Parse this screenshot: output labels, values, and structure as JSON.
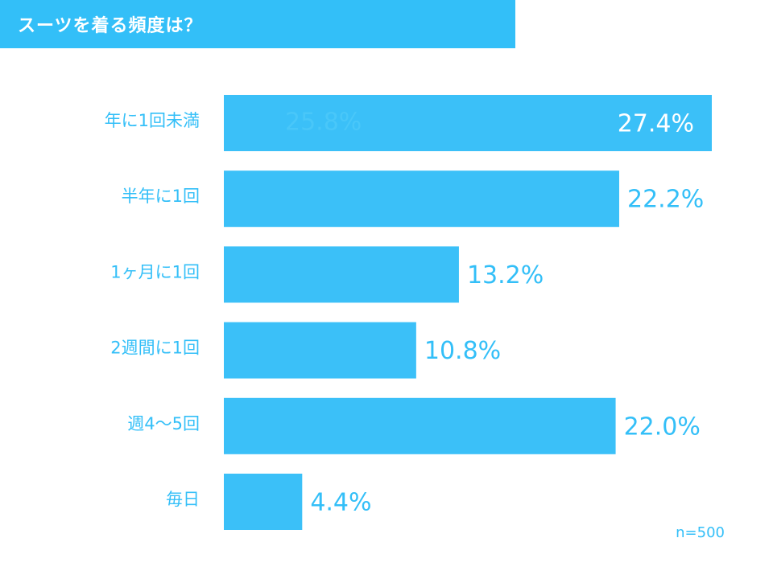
{
  "header": {
    "title": "スーツを着る頻度は？"
  },
  "note": "n=500",
  "colors": {
    "accent": "#33bff8",
    "bar": "#3bc0f8"
  },
  "chart_data": {
    "type": "bar",
    "orientation": "horizontal",
    "title": "スーツを着る頻度は？",
    "categories": [
      "年に1回未満",
      "半年に1回",
      "1ヶ月に1回",
      "2週間に1回",
      "週4～5回",
      "毎日"
    ],
    "values": [
      27.4,
      22.2,
      13.2,
      10.8,
      22.0,
      4.4
    ],
    "data_labels": [
      "27.4%",
      "22.2%",
      "13.2%",
      "10.8%",
      "22.0%",
      "4.4%"
    ],
    "ghost_annotation": "25.8%",
    "xlim": [
      0,
      27.4
    ],
    "grid": false,
    "legend": "none"
  }
}
